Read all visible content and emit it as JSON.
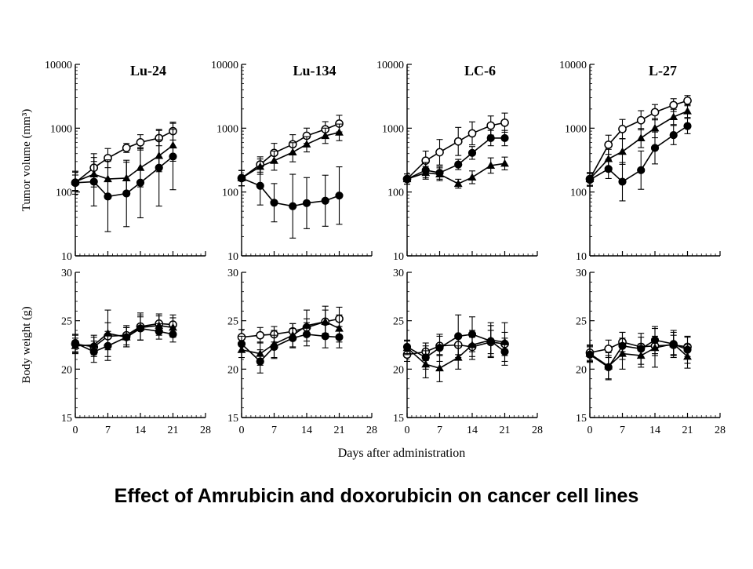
{
  "caption": "Effect of Amrubicin and doxorubicin on cancer cell lines",
  "x_axis_label": "Days after administration",
  "chart_data": [
    {
      "type": "line",
      "panel": "Lu-24",
      "title": "Lu-24",
      "ylabel": "Tumor volume (mm³)",
      "yscale": "log",
      "ylim": [
        10,
        10000
      ],
      "yticks": [
        10,
        100,
        1000,
        10000
      ],
      "xlim": [
        0,
        28
      ],
      "xticks": [
        0,
        7,
        14,
        21,
        28
      ],
      "series": [
        {
          "marker": "open-circle",
          "x": [
            0,
            4,
            7,
            11,
            14,
            18,
            21
          ],
          "y": [
            140,
            240,
            340,
            490,
            600,
            700,
            900
          ],
          "err": [
            0.12,
            0.22,
            0.15,
            0.07,
            0.12,
            0.12,
            0.14
          ]
        },
        {
          "marker": "filled-triangle",
          "x": [
            0,
            4,
            7,
            11,
            14,
            18,
            21
          ],
          "y": [
            145,
            190,
            160,
            165,
            240,
            370,
            540
          ],
          "err": [
            0.15,
            0.2,
            0.3,
            0.25,
            0.3,
            0.25,
            0.25
          ]
        },
        {
          "marker": "filled-circle",
          "x": [
            0,
            4,
            7,
            11,
            14,
            18,
            21
          ],
          "y": [
            140,
            145,
            85,
            95,
            140,
            240,
            360
          ],
          "err": [
            0.18,
            0.38,
            0.55,
            0.52,
            0.55,
            0.6,
            0.52
          ]
        }
      ]
    },
    {
      "type": "line",
      "panel": "Lu-134",
      "title": "Lu-134",
      "ylabel": "",
      "yscale": "log",
      "ylim": [
        10,
        10000
      ],
      "yticks": [
        10,
        100,
        1000,
        10000
      ],
      "xlim": [
        0,
        28
      ],
      "xticks": [
        0,
        7,
        14,
        21,
        28
      ],
      "series": [
        {
          "marker": "open-circle",
          "x": [
            0,
            4,
            7,
            11,
            14,
            18,
            21
          ],
          "y": [
            165,
            270,
            410,
            560,
            760,
            960,
            1180
          ],
          "err": [
            0.12,
            0.12,
            0.15,
            0.15,
            0.12,
            0.12,
            0.13
          ]
        },
        {
          "marker": "filled-triangle",
          "x": [
            0,
            4,
            7,
            11,
            14,
            18,
            21
          ],
          "y": [
            165,
            250,
            310,
            420,
            560,
            760,
            860
          ],
          "err": [
            0.12,
            0.12,
            0.15,
            0.15,
            0.12,
            0.12,
            0.13
          ]
        },
        {
          "marker": "filled-circle",
          "x": [
            0,
            4,
            7,
            11,
            14,
            18,
            21
          ],
          "y": [
            165,
            125,
            68,
            60,
            67,
            73,
            88
          ],
          "err": [
            0.12,
            0.3,
            0.3,
            0.5,
            0.4,
            0.4,
            0.45
          ]
        }
      ]
    },
    {
      "type": "line",
      "panel": "LC-6",
      "title": "LC-6",
      "ylabel": "",
      "yscale": "log",
      "ylim": [
        10,
        10000
      ],
      "yticks": [
        10,
        100,
        1000,
        10000
      ],
      "xlim": [
        0,
        28
      ],
      "xticks": [
        0,
        7,
        14,
        21,
        28
      ],
      "series": [
        {
          "marker": "open-circle",
          "x": [
            0,
            4,
            7,
            11,
            14,
            18,
            21
          ],
          "y": [
            160,
            310,
            420,
            620,
            830,
            1100,
            1220
          ],
          "err": [
            0.08,
            0.15,
            0.2,
            0.22,
            0.18,
            0.15,
            0.15
          ]
        },
        {
          "marker": "filled-circle",
          "x": [
            0,
            4,
            7,
            11,
            14,
            18,
            21
          ],
          "y": [
            160,
            220,
            200,
            270,
            410,
            700,
            700
          ],
          "err": [
            0.08,
            0.12,
            0.1,
            0.08,
            0.1,
            0.12,
            0.12
          ]
        },
        {
          "marker": "filled-triangle",
          "x": [
            0,
            4,
            7,
            11,
            14,
            18,
            21
          ],
          "y": [
            160,
            200,
            190,
            135,
            170,
            260,
            280
          ],
          "err": [
            0.08,
            0.1,
            0.1,
            0.07,
            0.1,
            0.12,
            0.1
          ]
        }
      ]
    },
    {
      "type": "line",
      "panel": "L-27",
      "title": "L-27",
      "ylabel": "",
      "yscale": "log",
      "ylim": [
        10,
        10000
      ],
      "yticks": [
        10,
        100,
        1000,
        10000
      ],
      "xlim": [
        0,
        28
      ],
      "xticks": [
        0,
        7,
        14,
        21,
        28
      ],
      "series": [
        {
          "marker": "open-circle",
          "x": [
            0,
            4,
            7,
            11,
            14,
            18,
            21
          ],
          "y": [
            160,
            550,
            970,
            1330,
            1780,
            2300,
            2700
          ],
          "err": [
            0.1,
            0.15,
            0.15,
            0.15,
            0.12,
            0.1,
            0.08
          ]
        },
        {
          "marker": "filled-triangle",
          "x": [
            0,
            4,
            7,
            11,
            14,
            18,
            21
          ],
          "y": [
            160,
            330,
            430,
            700,
            1000,
            1500,
            1850
          ],
          "err": [
            0.1,
            0.15,
            0.2,
            0.15,
            0.15,
            0.12,
            0.1
          ]
        },
        {
          "marker": "filled-circle",
          "x": [
            0,
            4,
            7,
            11,
            14,
            18,
            21
          ],
          "y": [
            155,
            230,
            145,
            220,
            490,
            780,
            1080
          ],
          "err": [
            0.1,
            0.15,
            0.3,
            0.3,
            0.25,
            0.15,
            0.12
          ]
        }
      ]
    },
    {
      "type": "line",
      "panel": "Lu-24 body weight",
      "title": "",
      "ylabel": "Body weight (g)",
      "yscale": "linear",
      "ylim": [
        15,
        30
      ],
      "yticks": [
        15,
        20,
        25,
        30
      ],
      "xlim": [
        0,
        28
      ],
      "xticks": [
        0,
        7,
        14,
        21,
        28
      ],
      "series": [
        {
          "marker": "open-circle",
          "x": [
            0,
            4,
            7,
            11,
            14,
            18,
            21
          ],
          "y": [
            22.6,
            22.3,
            23.4,
            23.5,
            24.4,
            24.7,
            24.6
          ],
          "err": [
            0.9,
            1.0,
            1.4,
            1.0,
            1.4,
            1.0,
            1.0
          ]
        },
        {
          "marker": "filled-triangle",
          "x": [
            0,
            4,
            7,
            11,
            14,
            18,
            21
          ],
          "y": [
            22.4,
            22.5,
            23.7,
            23.3,
            24.3,
            24.5,
            24.3
          ],
          "err": [
            0.8,
            1.0,
            2.4,
            1.0,
            1.3,
            1.0,
            1.0
          ]
        },
        {
          "marker": "filled-circle",
          "x": [
            0,
            4,
            7,
            11,
            14,
            18,
            21
          ],
          "y": [
            22.7,
            21.8,
            22.4,
            23.3,
            24.2,
            23.9,
            23.6
          ],
          "err": [
            0.9,
            1.1,
            1.5,
            1.0,
            1.2,
            0.8,
            0.8
          ]
        }
      ]
    },
    {
      "type": "line",
      "panel": "Lu-134 body weight",
      "title": "",
      "ylabel": "",
      "yscale": "linear",
      "ylim": [
        15,
        30
      ],
      "yticks": [
        15,
        20,
        25,
        30
      ],
      "xlim": [
        0,
        28
      ],
      "xticks": [
        0,
        7,
        14,
        21,
        28
      ],
      "series": [
        {
          "marker": "open-circle",
          "x": [
            0,
            4,
            7,
            11,
            14,
            18,
            21
          ],
          "y": [
            23.3,
            23.5,
            23.6,
            23.9,
            24.3,
            24.9,
            25.2
          ],
          "err": [
            0.8,
            0.8,
            0.8,
            0.8,
            0.9,
            1.2,
            1.2
          ]
        },
        {
          "marker": "filled-triangle",
          "x": [
            0,
            4,
            7,
            11,
            14,
            18,
            21
          ],
          "y": [
            22.0,
            21.6,
            22.6,
            23.5,
            24.5,
            24.9,
            24.2
          ],
          "err": [
            0.8,
            1.2,
            1.4,
            1.2,
            1.6,
            1.6,
            1.4
          ]
        },
        {
          "marker": "filled-circle",
          "x": [
            0,
            4,
            7,
            11,
            14,
            18,
            21
          ],
          "y": [
            22.6,
            20.8,
            22.3,
            23.2,
            23.6,
            23.4,
            23.3
          ],
          "err": [
            0.8,
            1.2,
            1.2,
            1.0,
            1.2,
            1.2,
            1.1
          ]
        }
      ]
    },
    {
      "type": "line",
      "panel": "LC-6 body weight",
      "title": "",
      "ylabel": "",
      "yscale": "linear",
      "ylim": [
        15,
        30
      ],
      "yticks": [
        15,
        20,
        25,
        30
      ],
      "xlim": [
        0,
        28
      ],
      "xticks": [
        0,
        7,
        14,
        21,
        28
      ],
      "series": [
        {
          "marker": "open-circle",
          "x": [
            0,
            4,
            7,
            11,
            14,
            18,
            21
          ],
          "y": [
            21.5,
            21.8,
            22.4,
            22.5,
            22.3,
            22.8,
            22.6
          ],
          "err": [
            0.7,
            0.9,
            1.0,
            1.0,
            1.0,
            1.2,
            1.2
          ]
        },
        {
          "marker": "filled-triangle",
          "x": [
            0,
            4,
            7,
            11,
            14,
            18,
            21
          ],
          "y": [
            22.2,
            20.5,
            20.1,
            21.2,
            22.5,
            23.0,
            22.8
          ],
          "err": [
            0.7,
            1.4,
            1.4,
            1.2,
            1.5,
            1.8,
            2.0
          ]
        },
        {
          "marker": "filled-circle",
          "x": [
            0,
            4,
            7,
            11,
            14,
            18,
            21
          ],
          "y": [
            22.3,
            21.2,
            22.2,
            23.4,
            23.6,
            22.9,
            21.8
          ],
          "err": [
            0.7,
            1.2,
            1.4,
            2.2,
            1.8,
            1.6,
            1.4
          ]
        }
      ]
    },
    {
      "type": "line",
      "panel": "L-27 body weight",
      "title": "",
      "ylabel": "",
      "yscale": "linear",
      "ylim": [
        15,
        30
      ],
      "yticks": [
        15,
        20,
        25,
        30
      ],
      "xlim": [
        0,
        28
      ],
      "xticks": [
        0,
        7,
        14,
        21,
        28
      ],
      "series": [
        {
          "marker": "open-circle",
          "x": [
            0,
            4,
            7,
            11,
            14,
            18,
            21
          ],
          "y": [
            21.7,
            22.1,
            22.8,
            22.3,
            22.4,
            22.5,
            22.3
          ],
          "err": [
            0.8,
            0.9,
            1.0,
            1.0,
            1.0,
            1.0,
            1.0
          ]
        },
        {
          "marker": "filled-triangle",
          "x": [
            0,
            4,
            7,
            11,
            14,
            18,
            21
          ],
          "y": [
            21.6,
            20.3,
            21.6,
            21.4,
            22.2,
            22.6,
            21.3
          ],
          "err": [
            0.8,
            1.4,
            1.6,
            1.2,
            2.0,
            1.4,
            1.2
          ]
        },
        {
          "marker": "filled-circle",
          "x": [
            0,
            4,
            7,
            11,
            14,
            18,
            21
          ],
          "y": [
            21.5,
            20.2,
            22.4,
            22.1,
            23.0,
            22.6,
            22.0
          ],
          "err": [
            0.8,
            1.2,
            1.4,
            1.6,
            1.4,
            1.2,
            1.4
          ]
        }
      ]
    }
  ]
}
